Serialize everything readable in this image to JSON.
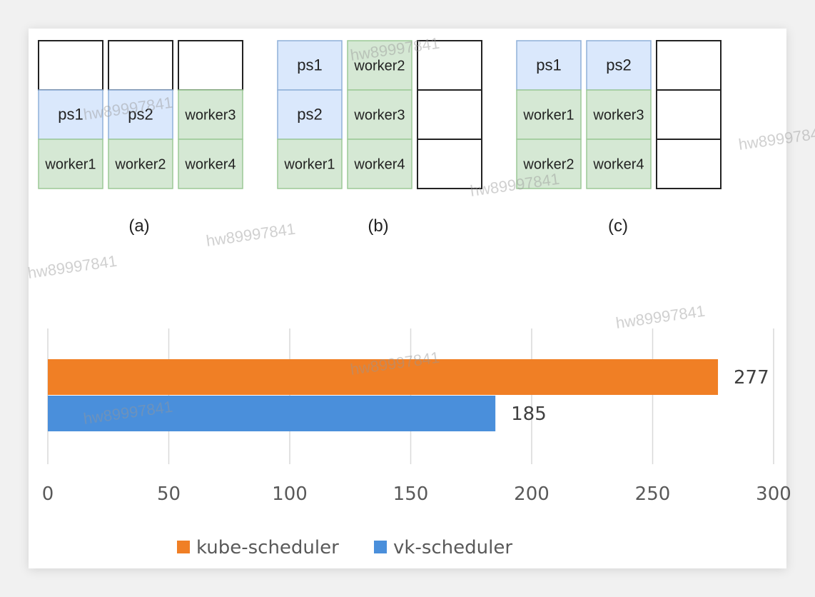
{
  "diagram": {
    "groups": [
      {
        "caption": "(a)",
        "columns": [
          [
            {
              "label": "",
              "type": "empty"
            },
            {
              "label": "ps1",
              "type": "ps"
            },
            {
              "label": "worker1",
              "type": "worker"
            }
          ],
          [
            {
              "label": "",
              "type": "empty"
            },
            {
              "label": "ps2",
              "type": "ps"
            },
            {
              "label": "worker2",
              "type": "worker"
            }
          ],
          [
            {
              "label": "",
              "type": "empty"
            },
            {
              "label": "worker3",
              "type": "worker"
            },
            {
              "label": "worker4",
              "type": "worker"
            }
          ]
        ]
      },
      {
        "caption": "(b)",
        "columns": [
          [
            {
              "label": "ps1",
              "type": "ps"
            },
            {
              "label": "ps2",
              "type": "ps"
            },
            {
              "label": "worker1",
              "type": "worker"
            }
          ],
          [
            {
              "label": "worker2",
              "type": "worker"
            },
            {
              "label": "worker3",
              "type": "worker"
            },
            {
              "label": "worker4",
              "type": "worker"
            }
          ],
          [
            {
              "label": "",
              "type": "empty"
            },
            {
              "label": "",
              "type": "empty"
            },
            {
              "label": "",
              "type": "empty"
            }
          ]
        ]
      },
      {
        "caption": "(c)",
        "columns": [
          [
            {
              "label": "ps1",
              "type": "ps"
            },
            {
              "label": "worker1",
              "type": "worker"
            },
            {
              "label": "worker2",
              "type": "worker"
            }
          ],
          [
            {
              "label": "ps2",
              "type": "ps"
            },
            {
              "label": "worker3",
              "type": "worker"
            },
            {
              "label": "worker4",
              "type": "worker"
            }
          ],
          [
            {
              "label": "",
              "type": "empty"
            },
            {
              "label": "",
              "type": "empty"
            },
            {
              "label": "",
              "type": "empty"
            }
          ]
        ]
      }
    ],
    "colors": {
      "ps_fill": "#dae8fc",
      "ps_stroke": "#8fb0d8",
      "worker_fill": "#d5e8d4",
      "worker_stroke": "#9cc996",
      "empty_fill": "#ffffff",
      "empty_stroke": "#222222"
    }
  },
  "watermark": "hw89997841",
  "chart_data": {
    "type": "bar",
    "orientation": "horizontal",
    "series": [
      {
        "name": "kube-scheduler",
        "value": 277,
        "color": "#f07f25"
      },
      {
        "name": "vk-scheduler",
        "value": 185,
        "color": "#4a8fdb"
      }
    ],
    "xlim": [
      0,
      300
    ],
    "xticks": [
      "0",
      "50",
      "100",
      "150",
      "200",
      "250",
      "300"
    ],
    "grid": true,
    "legend_position": "bottom"
  }
}
